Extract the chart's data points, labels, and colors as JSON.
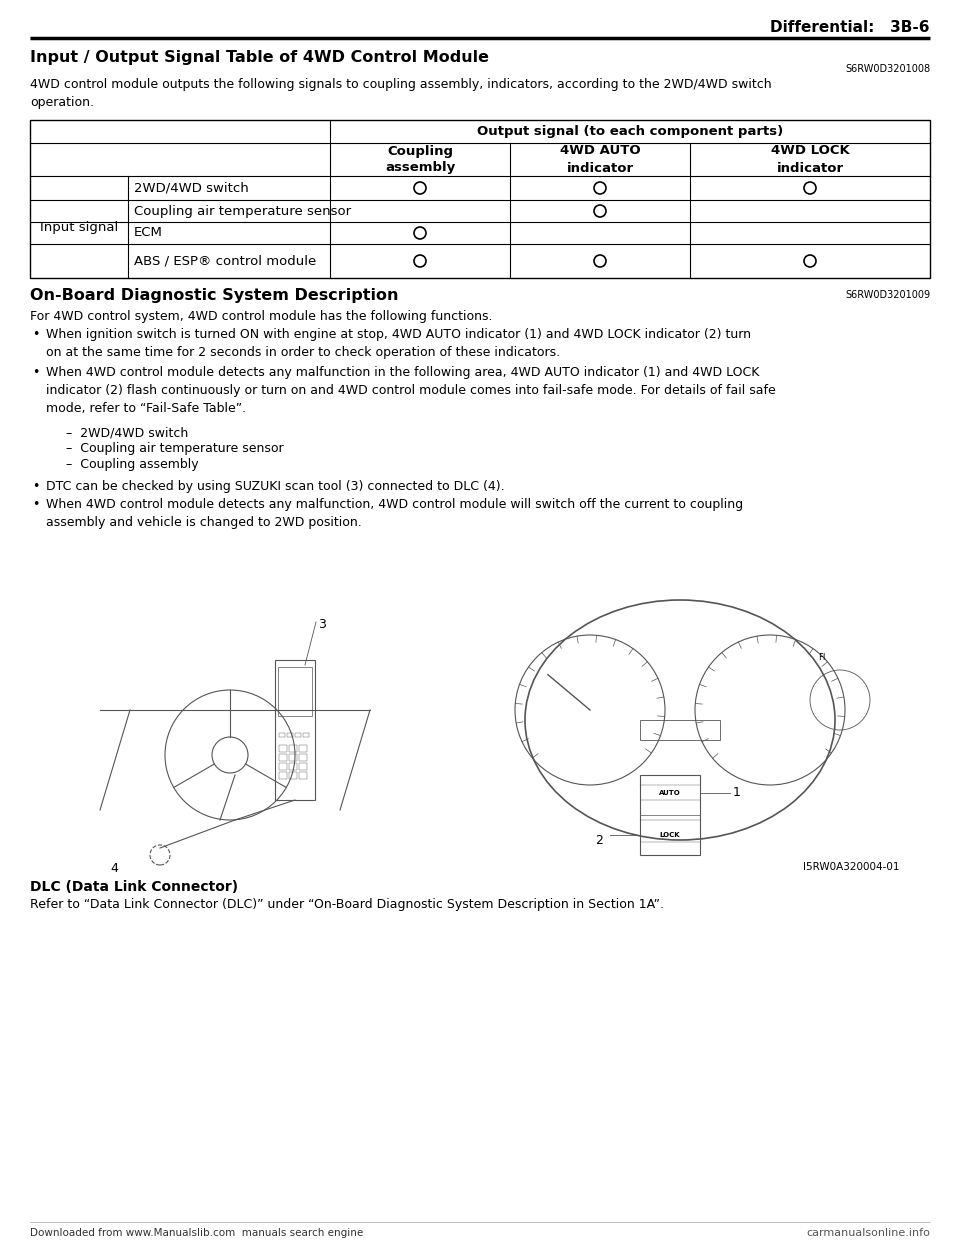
{
  "page_header_right": "Differential:   3B-6",
  "section1_title": "Input / Output Signal Table of 4WD Control Module",
  "section1_code": "S6RW0D3201008",
  "section1_desc": "4WD control module outputs the following signals to coupling assembly, indicators, according to the 2WD/4WD switch\noperation.",
  "table_header_main": "Output signal (to each component parts)",
  "table_col1": "Coupling\nassembly",
  "table_col2": "4WD AUTO\nindicator",
  "table_col3": "4WD LOCK\nindicator",
  "table_row_label": "Input signal",
  "table_rows": [
    {
      "label": "2WD/4WD switch",
      "col1": true,
      "col2": true,
      "col3": true
    },
    {
      "label": "Coupling air temperature sensor",
      "col1": false,
      "col2": true,
      "col3": false
    },
    {
      "label": "ECM",
      "col1": true,
      "col2": false,
      "col3": false
    },
    {
      "label": "ABS / ESP® control module",
      "col1": true,
      "col2": true,
      "col3": true
    }
  ],
  "section2_title": "On-Board Diagnostic System Description",
  "section2_code": "S6RW0D3201009",
  "section2_intro": "For 4WD control system, 4WD control module has the following functions.",
  "bullet1": "When ignition switch is turned ON with engine at stop, 4WD AUTO indicator (1) and 4WD LOCK indicator (2) turn\non at the same time for 2 seconds in order to check operation of these indicators.",
  "bullet2": "When 4WD control module detects any malfunction in the following area, 4WD AUTO indicator (1) and 4WD LOCK\nindicator (2) flash continuously or turn on and 4WD control module comes into fail-safe mode. For details of fail safe\nmode, refer to “Fail-Safe Table”.",
  "sub_bullet1": "–  2WD/4WD switch",
  "sub_bullet2": "–  Coupling air temperature sensor",
  "sub_bullet3": "–  Coupling assembly",
  "bullet3": "DTC can be checked by using SUZUKI scan tool (3) connected to DLC (4).",
  "bullet4": "When 4WD control module detects any malfunction, 4WD control module will switch off the current to coupling\nassembly and vehicle is changed to 2WD position.",
  "image_label_ref": "I5RW0A320004-01",
  "image_number_3": "3",
  "image_number_4": "4",
  "image_number_1": "1",
  "image_number_2": "2",
  "section3_title": "DLC (Data Link Connector)",
  "section3_desc": "Refer to “Data Link Connector (DLC)” under “On-Board Diagnostic System Description in Section 1A”.",
  "footer_left": "Downloaded from www.Manualslib.com  manuals search engine",
  "footer_right": "carmanualsonline.info",
  "bg_color": "#ffffff",
  "text_color": "#000000"
}
